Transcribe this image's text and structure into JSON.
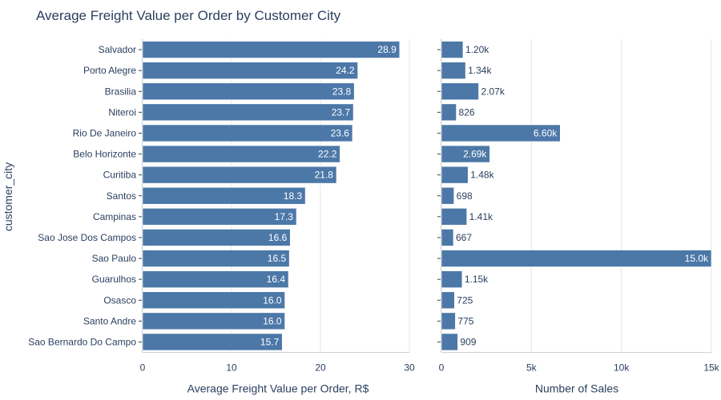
{
  "chart_data": {
    "title": "Average Freight Value per Order by Customer City",
    "ylabel": "customer_city",
    "bar_color": "#4c78a8",
    "categories": [
      "Salvador",
      "Porto Alegre",
      "Brasilia",
      "Niteroi",
      "Rio De Janeiro",
      "Belo Horizonte",
      "Curitiba",
      "Santos",
      "Campinas",
      "Sao Jose Dos Campos",
      "Sao Paulo",
      "Guarulhos",
      "Osasco",
      "Santo Andre",
      "Sao Bernardo Do Campo"
    ],
    "panels": [
      {
        "type": "bar",
        "orientation": "horizontal",
        "xlabel": "Average Freight Value per Order, R$",
        "xlim": [
          0,
          30
        ],
        "ticks": [
          0,
          10,
          20,
          30
        ],
        "tick_labels": [
          "0",
          "10",
          "20",
          "30"
        ],
        "values": [
          28.9,
          24.2,
          23.8,
          23.7,
          23.6,
          22.2,
          21.8,
          18.3,
          17.3,
          16.6,
          16.5,
          16.4,
          16.0,
          16.0,
          15.7
        ],
        "labels": [
          "28.9",
          "24.2",
          "23.8",
          "23.7",
          "23.6",
          "22.2",
          "21.8",
          "18.3",
          "17.3",
          "16.6",
          "16.5",
          "16.4",
          "16.0",
          "16.0",
          "15.7"
        ]
      },
      {
        "type": "bar",
        "orientation": "horizontal",
        "xlabel": "Number of Sales",
        "xlim": [
          0,
          15000
        ],
        "ticks": [
          0,
          5000,
          10000,
          15000
        ],
        "tick_labels": [
          "0",
          "5k",
          "10k",
          "15k"
        ],
        "values": [
          1200,
          1340,
          2070,
          826,
          6600,
          2690,
          1480,
          698,
          1410,
          667,
          15000,
          1150,
          725,
          775,
          909
        ],
        "labels": [
          "1.20k",
          "1.34k",
          "2.07k",
          "826",
          "6.60k",
          "2.69k",
          "1.48k",
          "698",
          "1.41k",
          "667",
          "15.0k",
          "1.15k",
          "725",
          "775",
          "909"
        ]
      }
    ]
  }
}
